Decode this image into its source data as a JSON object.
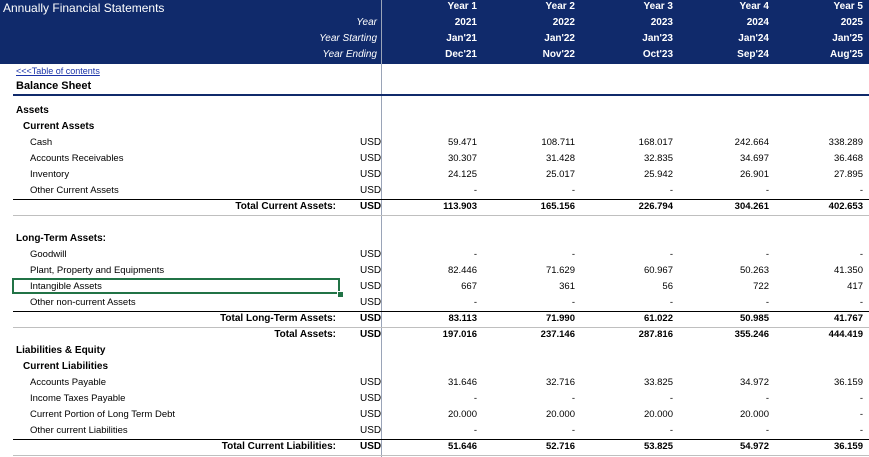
{
  "header": {
    "title": "Annually Financial Statements",
    "labels": {
      "year": "Year",
      "year_starting": "Year Starting",
      "year_ending": "Year Ending"
    },
    "columns": [
      {
        "year": "Year 1",
        "num": "2021",
        "start": "Jan'21",
        "end": "Dec'21"
      },
      {
        "year": "Year 2",
        "num": "2022",
        "start": "Jan'22",
        "end": "Nov'22"
      },
      {
        "year": "Year 3",
        "num": "2023",
        "start": "Jan'23",
        "end": "Oct'23"
      },
      {
        "year": "Year 4",
        "num": "2024",
        "start": "Jan'24",
        "end": "Sep'24"
      },
      {
        "year": "Year 5",
        "num": "2025",
        "start": "Jan'25",
        "end": "Aug'25"
      }
    ]
  },
  "toc_link": "<<<Table of contents",
  "section_title": "Balance Sheet",
  "rows": [
    {
      "label": "Assets",
      "kind": "h1",
      "currency": "",
      "values": []
    },
    {
      "label": "Current Assets",
      "kind": "h2",
      "currency": "",
      "values": []
    },
    {
      "label": "Cash",
      "kind": "item",
      "currency": "USD",
      "values": [
        "59.471",
        "108.711",
        "168.017",
        "242.664",
        "338.289"
      ]
    },
    {
      "label": "Accounts Receivables",
      "kind": "item",
      "currency": "USD",
      "values": [
        "30.307",
        "31.428",
        "32.835",
        "34.697",
        "36.468"
      ]
    },
    {
      "label": "Inventory",
      "kind": "item",
      "currency": "USD",
      "values": [
        "24.125",
        "25.017",
        "25.942",
        "26.901",
        "27.895"
      ]
    },
    {
      "label": "Other Current Assets",
      "kind": "item",
      "currency": "USD",
      "values": [
        "-",
        "-",
        "-",
        "-",
        "-"
      ]
    },
    {
      "label": "Total Current Assets:",
      "kind": "total",
      "currency": "USD",
      "values": [
        "113.903",
        "165.156",
        "226.794",
        "304.261",
        "402.653"
      ]
    },
    {
      "label": "",
      "kind": "blank",
      "currency": "",
      "values": []
    },
    {
      "label": "Long-Term Assets:",
      "kind": "h2b",
      "currency": "",
      "values": []
    },
    {
      "label": "Goodwill",
      "kind": "item",
      "currency": "USD",
      "values": [
        "-",
        "-",
        "-",
        "-",
        "-"
      ]
    },
    {
      "label": "Plant, Property and Equipments",
      "kind": "item",
      "currency": "USD",
      "values": [
        "82.446",
        "71.629",
        "60.967",
        "50.263",
        "41.350"
      ]
    },
    {
      "label": "Intangible Assets",
      "kind": "item",
      "currency": "USD",
      "values": [
        "667",
        "361",
        "56",
        "722",
        "417"
      ]
    },
    {
      "label": "Other non-current Assets",
      "kind": "item",
      "currency": "USD",
      "values": [
        "-",
        "-",
        "-",
        "-",
        "-"
      ]
    },
    {
      "label": "Total Long-Term Assets:",
      "kind": "total",
      "currency": "USD",
      "values": [
        "83.113",
        "71.990",
        "61.022",
        "50.985",
        "41.767"
      ]
    },
    {
      "label": "Total Assets:",
      "kind": "total2",
      "currency": "USD",
      "values": [
        "197.016",
        "237.146",
        "287.816",
        "355.246",
        "444.419"
      ]
    },
    {
      "label": "Liabilities & Equity",
      "kind": "h1",
      "currency": "",
      "values": []
    },
    {
      "label": "Current Liabilities",
      "kind": "h2",
      "currency": "",
      "values": []
    },
    {
      "label": "Accounts Payable",
      "kind": "item",
      "currency": "USD",
      "values": [
        "31.646",
        "32.716",
        "33.825",
        "34.972",
        "36.159"
      ]
    },
    {
      "label": "Income Taxes Payable",
      "kind": "item",
      "currency": "USD",
      "values": [
        "-",
        "-",
        "-",
        "-",
        "-"
      ]
    },
    {
      "label": "Current Portion of Long Term Debt",
      "kind": "item",
      "currency": "USD",
      "values": [
        "20.000",
        "20.000",
        "20.000",
        "20.000",
        "-"
      ]
    },
    {
      "label": "Other current Liabilities",
      "kind": "item",
      "currency": "USD",
      "values": [
        "-",
        "-",
        "-",
        "-",
        "-"
      ]
    },
    {
      "label": "Total Current Liabilities:",
      "kind": "total",
      "currency": "USD",
      "values": [
        "51.646",
        "52.716",
        "53.825",
        "54.972",
        "36.159"
      ]
    }
  ],
  "colors": {
    "header_bg": "#102a6b",
    "selection": "#217346",
    "link": "#1a33a8"
  }
}
